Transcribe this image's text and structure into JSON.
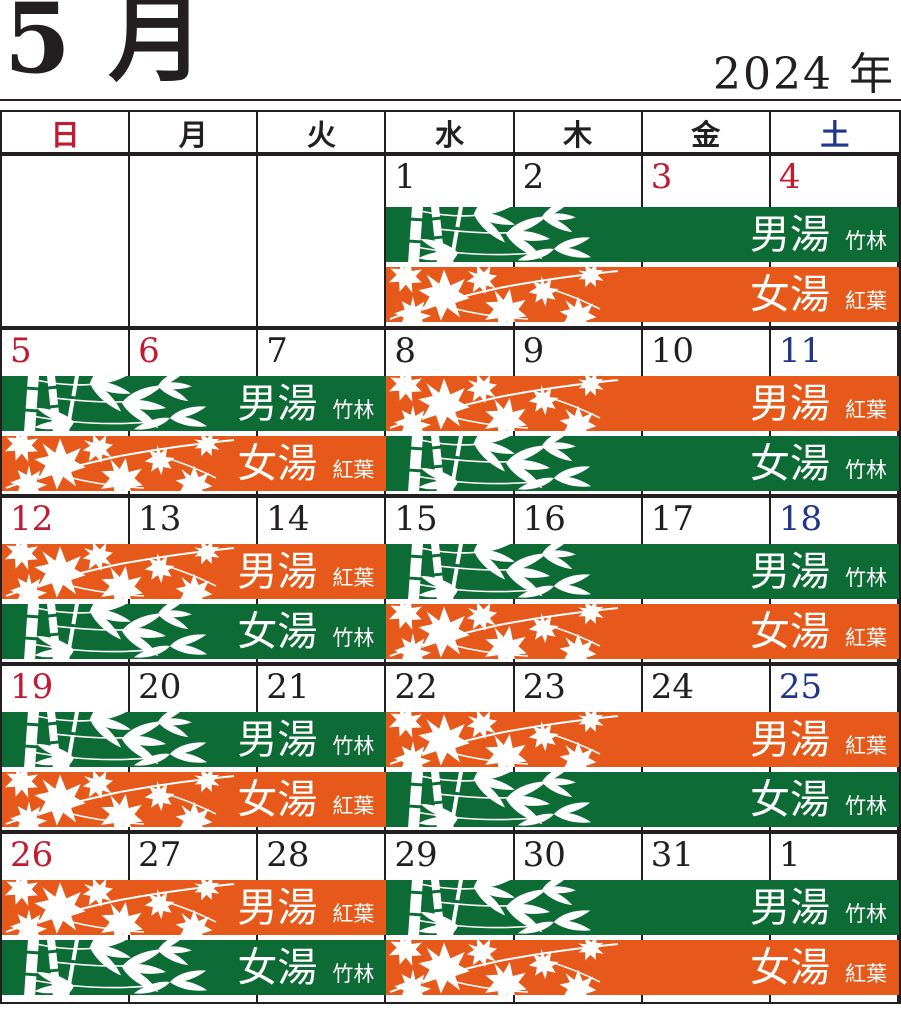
{
  "header": {
    "month_label": "5 月",
    "year_label": "2024 年"
  },
  "weekdays": [
    {
      "label": "日",
      "color": "#c11a31"
    },
    {
      "label": "月",
      "color": "#231f20"
    },
    {
      "label": "火",
      "color": "#231f20"
    },
    {
      "label": "水",
      "color": "#231f20"
    },
    {
      "label": "木",
      "color": "#231f20"
    },
    {
      "label": "金",
      "color": "#231f20"
    },
    {
      "label": "土",
      "color": "#20368c"
    }
  ],
  "colors": {
    "band_green": "#0d6b35",
    "band_orange": "#e6591a",
    "holiday_red": "#c11a31",
    "saturday_blue": "#20368c",
    "ink": "#231f20",
    "band_text": "#ffffff"
  },
  "legend": {
    "men_bath": "男湯",
    "women_bath": "女湯",
    "bamboo_theme": "竹林",
    "maple_theme": "紅葉"
  },
  "weeks": [
    {
      "dates": [
        {
          "t": "",
          "c": "black"
        },
        {
          "t": "",
          "c": "black"
        },
        {
          "t": "",
          "c": "black"
        },
        {
          "t": "1",
          "c": "black"
        },
        {
          "t": "2",
          "c": "black"
        },
        {
          "t": "3",
          "c": "red"
        },
        {
          "t": "4",
          "c": "red"
        }
      ],
      "groups": [
        {
          "start": 0,
          "span": 3,
          "bands": []
        },
        {
          "start": 3,
          "span": 4,
          "bands": [
            {
              "bath": "男湯",
              "theme": "竹林",
              "color": "green",
              "plant": "bamboo"
            },
            {
              "bath": "女湯",
              "theme": "紅葉",
              "color": "orange",
              "plant": "maple"
            }
          ]
        }
      ]
    },
    {
      "dates": [
        {
          "t": "5",
          "c": "red"
        },
        {
          "t": "6",
          "c": "red"
        },
        {
          "t": "7",
          "c": "black"
        },
        {
          "t": "8",
          "c": "black"
        },
        {
          "t": "9",
          "c": "black"
        },
        {
          "t": "10",
          "c": "black"
        },
        {
          "t": "11",
          "c": "blue"
        }
      ],
      "groups": [
        {
          "start": 0,
          "span": 3,
          "bands": [
            {
              "bath": "男湯",
              "theme": "竹林",
              "color": "green",
              "plant": "bamboo"
            },
            {
              "bath": "女湯",
              "theme": "紅葉",
              "color": "orange",
              "plant": "maple"
            }
          ]
        },
        {
          "start": 3,
          "span": 4,
          "bands": [
            {
              "bath": "男湯",
              "theme": "紅葉",
              "color": "orange",
              "plant": "maple"
            },
            {
              "bath": "女湯",
              "theme": "竹林",
              "color": "green",
              "plant": "bamboo"
            }
          ]
        }
      ]
    },
    {
      "dates": [
        {
          "t": "12",
          "c": "red"
        },
        {
          "t": "13",
          "c": "black"
        },
        {
          "t": "14",
          "c": "black"
        },
        {
          "t": "15",
          "c": "black"
        },
        {
          "t": "16",
          "c": "black"
        },
        {
          "t": "17",
          "c": "black"
        },
        {
          "t": "18",
          "c": "blue"
        }
      ],
      "groups": [
        {
          "start": 0,
          "span": 3,
          "bands": [
            {
              "bath": "男湯",
              "theme": "紅葉",
              "color": "orange",
              "plant": "maple"
            },
            {
              "bath": "女湯",
              "theme": "竹林",
              "color": "green",
              "plant": "bamboo"
            }
          ]
        },
        {
          "start": 3,
          "span": 4,
          "bands": [
            {
              "bath": "男湯",
              "theme": "竹林",
              "color": "green",
              "plant": "bamboo"
            },
            {
              "bath": "女湯",
              "theme": "紅葉",
              "color": "orange",
              "plant": "maple"
            }
          ]
        }
      ]
    },
    {
      "dates": [
        {
          "t": "19",
          "c": "red"
        },
        {
          "t": "20",
          "c": "black"
        },
        {
          "t": "21",
          "c": "black"
        },
        {
          "t": "22",
          "c": "black"
        },
        {
          "t": "23",
          "c": "black"
        },
        {
          "t": "24",
          "c": "black"
        },
        {
          "t": "25",
          "c": "blue"
        }
      ],
      "groups": [
        {
          "start": 0,
          "span": 3,
          "bands": [
            {
              "bath": "男湯",
              "theme": "竹林",
              "color": "green",
              "plant": "bamboo"
            },
            {
              "bath": "女湯",
              "theme": "紅葉",
              "color": "orange",
              "plant": "maple"
            }
          ]
        },
        {
          "start": 3,
          "span": 4,
          "bands": [
            {
              "bath": "男湯",
              "theme": "紅葉",
              "color": "orange",
              "plant": "maple"
            },
            {
              "bath": "女湯",
              "theme": "竹林",
              "color": "green",
              "plant": "bamboo"
            }
          ]
        }
      ]
    },
    {
      "dates": [
        {
          "t": "26",
          "c": "red"
        },
        {
          "t": "27",
          "c": "black"
        },
        {
          "t": "28",
          "c": "black"
        },
        {
          "t": "29",
          "c": "black"
        },
        {
          "t": "30",
          "c": "black"
        },
        {
          "t": "31",
          "c": "black"
        },
        {
          "t": "1",
          "c": "black"
        }
      ],
      "groups": [
        {
          "start": 0,
          "span": 3,
          "bands": [
            {
              "bath": "男湯",
              "theme": "紅葉",
              "color": "orange",
              "plant": "maple"
            },
            {
              "bath": "女湯",
              "theme": "竹林",
              "color": "green",
              "plant": "bamboo"
            }
          ]
        },
        {
          "start": 3,
          "span": 4,
          "bands": [
            {
              "bath": "男湯",
              "theme": "竹林",
              "color": "green",
              "plant": "bamboo"
            },
            {
              "bath": "女湯",
              "theme": "紅葉",
              "color": "orange",
              "plant": "maple"
            }
          ]
        }
      ]
    }
  ]
}
